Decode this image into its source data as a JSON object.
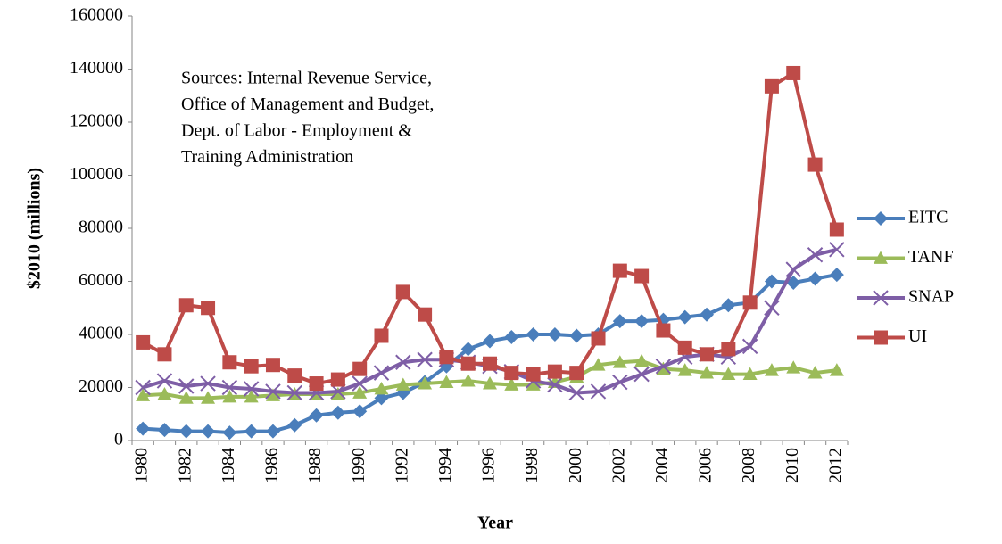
{
  "chart_data": {
    "type": "line",
    "x_label": "Year",
    "y_label": "$2010 (millions)",
    "annotation": [
      "Sources: Internal Revenue Service,",
      "Office of Management and Budget,",
      "Dept. of Labor - Employment &",
      "Training Administration"
    ],
    "categories": [
      "1980",
      null,
      "1982",
      null,
      "1984",
      null,
      "1986",
      null,
      "1988",
      null,
      "1990",
      null,
      "1992",
      null,
      "1994",
      null,
      "1996",
      null,
      "1998",
      null,
      "2000",
      null,
      "2002",
      null,
      "2004",
      null,
      "2006",
      null,
      "2008",
      null,
      "2010",
      null,
      "2012"
    ],
    "ylim": [
      0,
      160000
    ],
    "yticks": [
      0,
      20000,
      40000,
      60000,
      80000,
      100000,
      120000,
      140000,
      160000
    ],
    "grid": false,
    "legend": "right",
    "series": [
      {
        "name": "EITC",
        "color": "#4a7ebb",
        "marker": "diamond",
        "values": [
          4500,
          4000,
          3500,
          3500,
          3000,
          3500,
          3500,
          5800,
          9500,
          10500,
          11000,
          16000,
          18000,
          22000,
          28000,
          34500,
          37500,
          39000,
          40000,
          40000,
          39500,
          40000,
          45000,
          45000,
          45500,
          46500,
          47500,
          51000,
          52000,
          60000,
          59500,
          61000,
          62500
        ]
      },
      {
        "name": "TANF",
        "color": "#9bbb59",
        "marker": "triangle",
        "values": [
          17000,
          17500,
          16000,
          16000,
          16500,
          16500,
          17000,
          17500,
          17500,
          17500,
          18000,
          19500,
          21000,
          21500,
          22000,
          22500,
          21500,
          21000,
          21000,
          22000,
          24000,
          28500,
          29500,
          30000,
          27000,
          26500,
          25500,
          25000,
          25000,
          26500,
          27500,
          25500,
          26500
        ]
      },
      {
        "name": "SNAP",
        "color": "#7e5ea6",
        "marker": "x",
        "values": [
          20000,
          22500,
          20500,
          21500,
          20000,
          19500,
          18500,
          18000,
          18000,
          18500,
          21500,
          25500,
          29500,
          30500,
          30500,
          29500,
          28000,
          26000,
          22500,
          21000,
          18000,
          18500,
          22000,
          25000,
          28000,
          31500,
          32500,
          31500,
          35500,
          50000,
          64500,
          70000,
          72000
        ]
      },
      {
        "name": "UI",
        "color": "#be4b48",
        "marker": "square",
        "values": [
          37000,
          32500,
          51000,
          50000,
          29500,
          28000,
          28500,
          24500,
          21500,
          23000,
          27000,
          39500,
          56000,
          47500,
          31500,
          29000,
          29000,
          25500,
          25000,
          26000,
          25500,
          38500,
          64000,
          62000,
          41500,
          35000,
          32500,
          34500,
          52000,
          133500,
          138500,
          104000,
          79500
        ]
      }
    ]
  }
}
